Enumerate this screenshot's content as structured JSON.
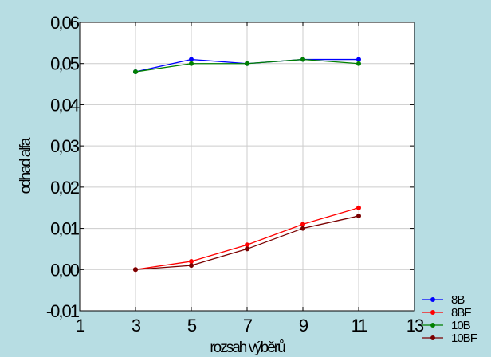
{
  "chart_data": {
    "type": "line",
    "xlabel": "rozsah výběrů",
    "ylabel": "odhad alfa",
    "xlim": [
      1,
      13
    ],
    "ylim": [
      -0.01,
      0.06
    ],
    "x_ticks": [
      1,
      3,
      5,
      7,
      9,
      11,
      13
    ],
    "x_tick_labels": [
      "1",
      "3",
      "5",
      "7",
      "9",
      "11",
      "13"
    ],
    "y_ticks": [
      -0.01,
      0.0,
      0.01,
      0.02,
      0.03,
      0.04,
      0.05,
      0.06
    ],
    "y_tick_labels": [
      "-0,01",
      "0,00",
      "0,01",
      "0,02",
      "0,03",
      "0,04",
      "0,05",
      "0,06"
    ],
    "grid": true,
    "legend_position": "bottom-right",
    "x": [
      3,
      5,
      7,
      9,
      11
    ],
    "series": [
      {
        "name": "8B",
        "color": "#0000ff",
        "values": [
          0.048,
          0.051,
          0.05,
          0.051,
          0.051
        ]
      },
      {
        "name": "8BF",
        "color": "#ff0000",
        "values": [
          0.0,
          0.002,
          0.006,
          0.011,
          0.015
        ]
      },
      {
        "name": "10B",
        "color": "#008000",
        "values": [
          0.048,
          0.05,
          0.05,
          0.051,
          0.05
        ]
      },
      {
        "name": "10BF",
        "color": "#7a0000",
        "values": [
          0.0,
          0.001,
          0.005,
          0.01,
          0.013
        ]
      }
    ]
  }
}
